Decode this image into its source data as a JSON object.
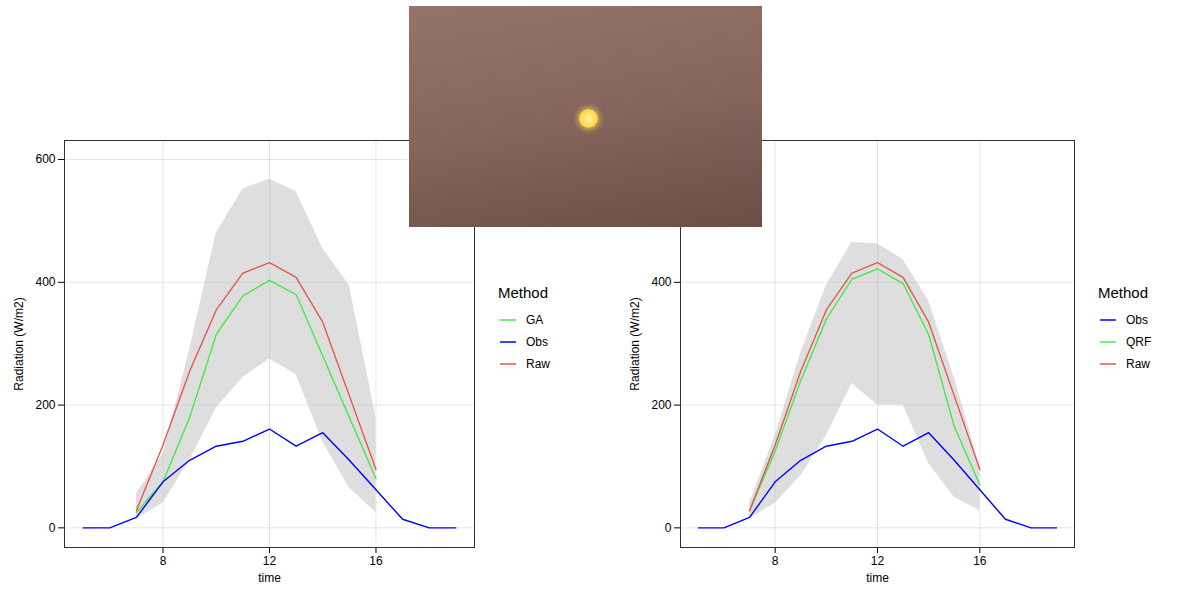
{
  "chart_data": [
    {
      "type": "line",
      "x_label": "time",
      "y_label": "Radiation (W/m2)",
      "legend_title": "Method",
      "x": [
        5,
        6,
        7,
        8,
        9,
        10,
        11,
        12,
        13,
        14,
        15,
        16,
        17,
        18,
        19
      ],
      "xlim": [
        4.3,
        19.7
      ],
      "xticks": [
        8,
        12,
        16
      ],
      "ylim": [
        -32,
        631
      ],
      "yticks": [
        0,
        200,
        400,
        600
      ],
      "grid": true,
      "legend": "right",
      "series": [
        {
          "name": "GA",
          "color": "#4ce64c",
          "values": [
            null,
            null,
            25,
            75,
            180,
            315,
            378,
            403,
            380,
            280,
            180,
            80,
            null,
            null,
            null
          ],
          "lower": [
            null,
            null,
            15,
            40,
            110,
            195,
            245,
            275,
            250,
            140,
            65,
            25,
            null,
            null,
            null
          ],
          "upper": [
            null,
            null,
            55,
            120,
            290,
            480,
            552,
            568,
            548,
            455,
            395,
            180,
            null,
            null,
            null
          ]
        },
        {
          "name": "Obs",
          "color": "#0000ff",
          "values": [
            0,
            0,
            17,
            75,
            110,
            133,
            141,
            161,
            133,
            155,
            110,
            62,
            14,
            0,
            0
          ]
        },
        {
          "name": "Raw",
          "color": "#e05a4e",
          "values": [
            null,
            null,
            28,
            135,
            255,
            355,
            415,
            432,
            408,
            335,
            215,
            95,
            null,
            null,
            null
          ]
        }
      ]
    },
    {
      "type": "line",
      "x_label": "time",
      "y_label": "Radiation (W/m2)",
      "legend_title": "Method",
      "x": [
        5,
        6,
        7,
        8,
        9,
        10,
        11,
        12,
        13,
        14,
        15,
        16,
        17,
        18,
        19
      ],
      "xlim": [
        4.3,
        19.7
      ],
      "xticks": [
        8,
        12,
        16
      ],
      "ylim": [
        -32,
        631
      ],
      "yticks": [
        0,
        200,
        400
      ],
      "grid": true,
      "legend": "right",
      "series": [
        {
          "name": "Obs",
          "color": "#0000ff",
          "values": [
            0,
            0,
            17,
            75,
            110,
            133,
            141,
            161,
            133,
            155,
            110,
            62,
            14,
            0,
            0
          ]
        },
        {
          "name": "QRF",
          "color": "#4ce64c",
          "values": [
            null,
            null,
            28,
            125,
            240,
            340,
            405,
            422,
            398,
            315,
            165,
            70,
            null,
            null,
            null
          ],
          "lower": [
            null,
            null,
            15,
            40,
            85,
            150,
            235,
            200,
            200,
            105,
            50,
            28,
            null,
            null,
            null
          ],
          "upper": [
            null,
            null,
            40,
            150,
            285,
            395,
            465,
            463,
            437,
            370,
            245,
            100,
            null,
            null,
            null
          ]
        },
        {
          "name": "Raw",
          "color": "#e05a4e",
          "values": [
            null,
            null,
            28,
            135,
            255,
            355,
            415,
            432,
            408,
            335,
            215,
            95,
            null,
            null,
            null
          ]
        }
      ]
    }
  ]
}
